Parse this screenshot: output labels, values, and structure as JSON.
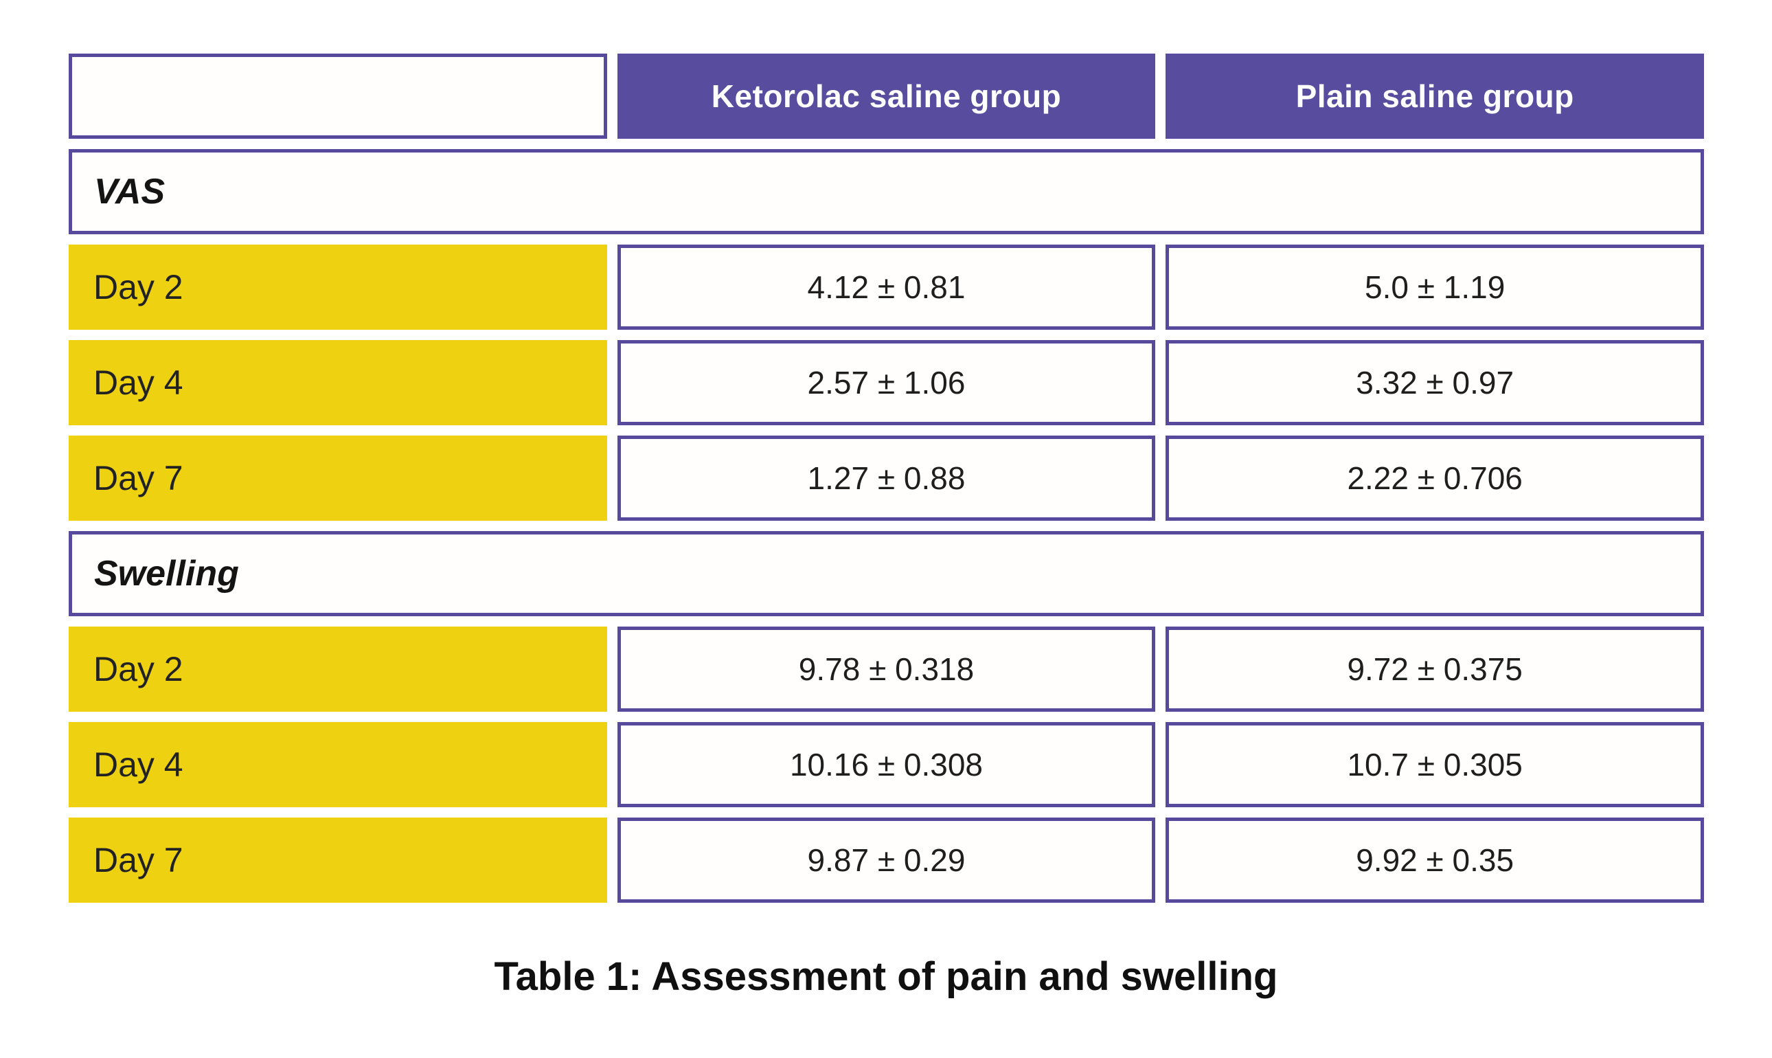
{
  "colors": {
    "purple": "#584C9E",
    "purpleBorder": "#574A9C",
    "yellow": "#EED211",
    "cellBg": "#FFFEFC",
    "textDark": "#1E1E1E"
  },
  "header": {
    "columns": [
      "Ketorolac saline group",
      "Plain saline group"
    ]
  },
  "sections": [
    {
      "label": "VAS",
      "rows": [
        {
          "label": "Day 2",
          "values": [
            "4.12 ± 0.81",
            "5.0 ± 1.19"
          ]
        },
        {
          "label": "Day 4",
          "values": [
            "2.57 ± 1.06",
            "3.32 ± 0.97"
          ]
        },
        {
          "label": "Day 7",
          "values": [
            "1.27 ± 0.88",
            "2.22 ± 0.706"
          ]
        }
      ]
    },
    {
      "label": "Swelling",
      "rows": [
        {
          "label": "Day 2",
          "values": [
            "9.78 ± 0.318",
            "9.72 ± 0.375"
          ]
        },
        {
          "label": "Day 4",
          "values": [
            "10.16 ± 0.308",
            "10.7 ± 0.305"
          ]
        },
        {
          "label": "Day 7",
          "values": [
            "9.87 ± 0.29",
            "9.92 ± 0.35"
          ]
        }
      ]
    }
  ],
  "caption": "Table 1: Assessment of pain and swelling",
  "chart_data": {
    "type": "table",
    "title": "Table 1: Assessment of pain and swelling",
    "columns": [
      "",
      "Ketorolac saline group",
      "Plain saline group"
    ],
    "rows": [
      [
        "VAS",
        "",
        ""
      ],
      [
        "Day 2",
        "4.12 ± 0.81",
        "5.0 ± 1.19"
      ],
      [
        "Day 4",
        "2.57 ± 1.06",
        "3.32 ± 0.97"
      ],
      [
        "Day 7",
        "1.27 ± 0.88",
        "2.22 ± 0.706"
      ],
      [
        "Swelling",
        "",
        ""
      ],
      [
        "Day 2",
        "9.78 ± 0.318",
        "9.72 ± 0.375"
      ],
      [
        "Day 4",
        "10.16 ± 0.308",
        "10.7 ± 0.305"
      ],
      [
        "Day 7",
        "9.87 ± 0.29",
        "9.92 ± 0.35"
      ]
    ]
  }
}
